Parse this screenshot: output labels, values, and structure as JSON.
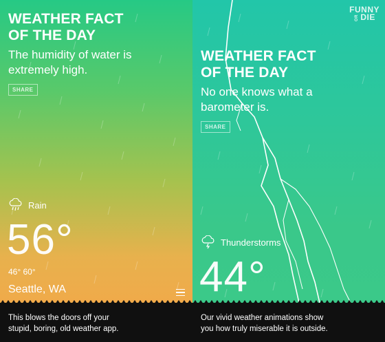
{
  "left": {
    "fact_title_line1": "WEATHER FACT",
    "fact_title_line2": "OF THE DAY",
    "fact_text_line1": "The humidity of water is",
    "fact_text_line2": "extremely high.",
    "share_label": "SHARE",
    "condition": "Rain",
    "condition_icon": "rain-cloud-icon",
    "temperature": "56°",
    "low_high": "46° 60°",
    "location": "Seattle, WA",
    "caption_line1": "This blows the doors off your",
    "caption_line2": "stupid, boring, old weather app."
  },
  "right": {
    "fact_title_line1": "WEATHER FACT",
    "fact_title_line2": "OF THE DAY",
    "fact_text_line1": "No one knows what a",
    "fact_text_line2": "barometer is.",
    "share_label": "SHARE",
    "condition": "Thunderstorms",
    "condition_icon": "storm-cloud-icon",
    "temperature": "44°",
    "caption_line1": "Our vivid weather animations show",
    "caption_line2": "you how truly miserable it is outside."
  },
  "logo": {
    "line1": "FUNNY",
    "small": "OR",
    "line2": "DIE"
  },
  "colors": {
    "left_top": "#26c985",
    "left_bottom": "#f0aa4a",
    "right_top": "#22c6a9",
    "right_bottom": "#3bc989",
    "caption_bg": "#101010"
  }
}
